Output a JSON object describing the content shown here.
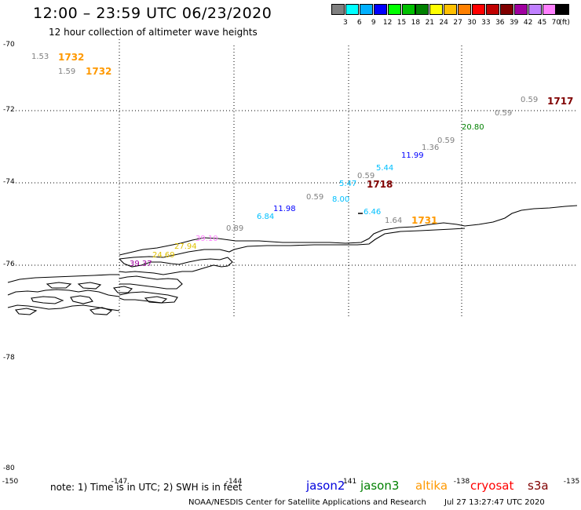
{
  "title": "12:00 – 23:59 UTC 06/23/2020",
  "subtitle": "12 hour collection of altimeter wave heights",
  "colorbar": {
    "colors": [
      "#808080",
      "#00ffff",
      "#00b0ff",
      "#0000ff",
      "#00ff00",
      "#00c000",
      "#008000",
      "#ffff00",
      "#ffc000",
      "#ff8000",
      "#ff0000",
      "#c00000",
      "#800000",
      "#a000a0",
      "#c080ff",
      "#ff80ff",
      "#000000"
    ],
    "labels": [
      "3",
      "6",
      "9",
      "12",
      "15",
      "18",
      "21",
      "24",
      "27",
      "30",
      "33",
      "36",
      "39",
      "42",
      "45",
      "70",
      "(ft)"
    ]
  },
  "lat_labels": [
    "-70",
    "-72",
    "-74",
    "-76",
    "-78",
    "-80"
  ],
  "lon_labels": [
    "-150",
    "-147",
    "-144",
    "-141",
    "-138",
    "-135"
  ],
  "wave_labels": [
    {
      "text": "1.53",
      "color": "#808080"
    },
    {
      "text": "1.59",
      "color": "#808080"
    },
    {
      "text": "0.59",
      "color": "#808080"
    },
    {
      "text": "0.59",
      "color": "#808080"
    },
    {
      "text": "20.80",
      "color": "#008000"
    },
    {
      "text": "0.59",
      "color": "#808080"
    },
    {
      "text": "1.36",
      "color": "#808080"
    },
    {
      "text": "11.99",
      "color": "#0000ff"
    },
    {
      "text": "5.44",
      "color": "#00c0ff"
    },
    {
      "text": "0.59",
      "color": "#808080"
    },
    {
      "text": "5.47",
      "color": "#00c0ff"
    },
    {
      "text": "0.59",
      "color": "#808080"
    },
    {
      "text": "8.00",
      "color": "#00c0ff"
    },
    {
      "text": "11.98",
      "color": "#0000ff"
    },
    {
      "text": "6.84",
      "color": "#00c0ff"
    },
    {
      "text": "6.46",
      "color": "#00c0ff"
    },
    {
      "text": "1.64",
      "color": "#808080"
    },
    {
      "text": "0.89",
      "color": "#808080"
    },
    {
      "text": "39.10",
      "color": "#ff80ff"
    },
    {
      "text": "27.94",
      "color": "#e0c000"
    },
    {
      "text": "24.69",
      "color": "#e0c000"
    },
    {
      "text": "39.37",
      "color": "#a000a0"
    }
  ],
  "time_labels": [
    {
      "text": "1732",
      "color": "#ff9900"
    },
    {
      "text": "1732",
      "color": "#ff9900"
    },
    {
      "text": "1717",
      "color": "#800000"
    },
    {
      "text": "1718",
      "color": "#800000"
    },
    {
      "text": "1731",
      "color": "#ff9900"
    }
  ],
  "footer": {
    "note": "note: 1) Time is in UTC; 2) SWH is in feet",
    "missions": [
      {
        "name": "jason2",
        "color": "#0000dd"
      },
      {
        "name": "jason3",
        "color": "#008000"
      },
      {
        "name": "altika",
        "color": "#ff9900"
      },
      {
        "name": "cryosat",
        "color": "#ff0000"
      },
      {
        "name": "s3a",
        "color": "#800000"
      }
    ],
    "credit": "NOAA/NESDIS Center for Satellite Applications and Research",
    "timestamp": "Jul 27 13:27:47 UTC 2020"
  }
}
